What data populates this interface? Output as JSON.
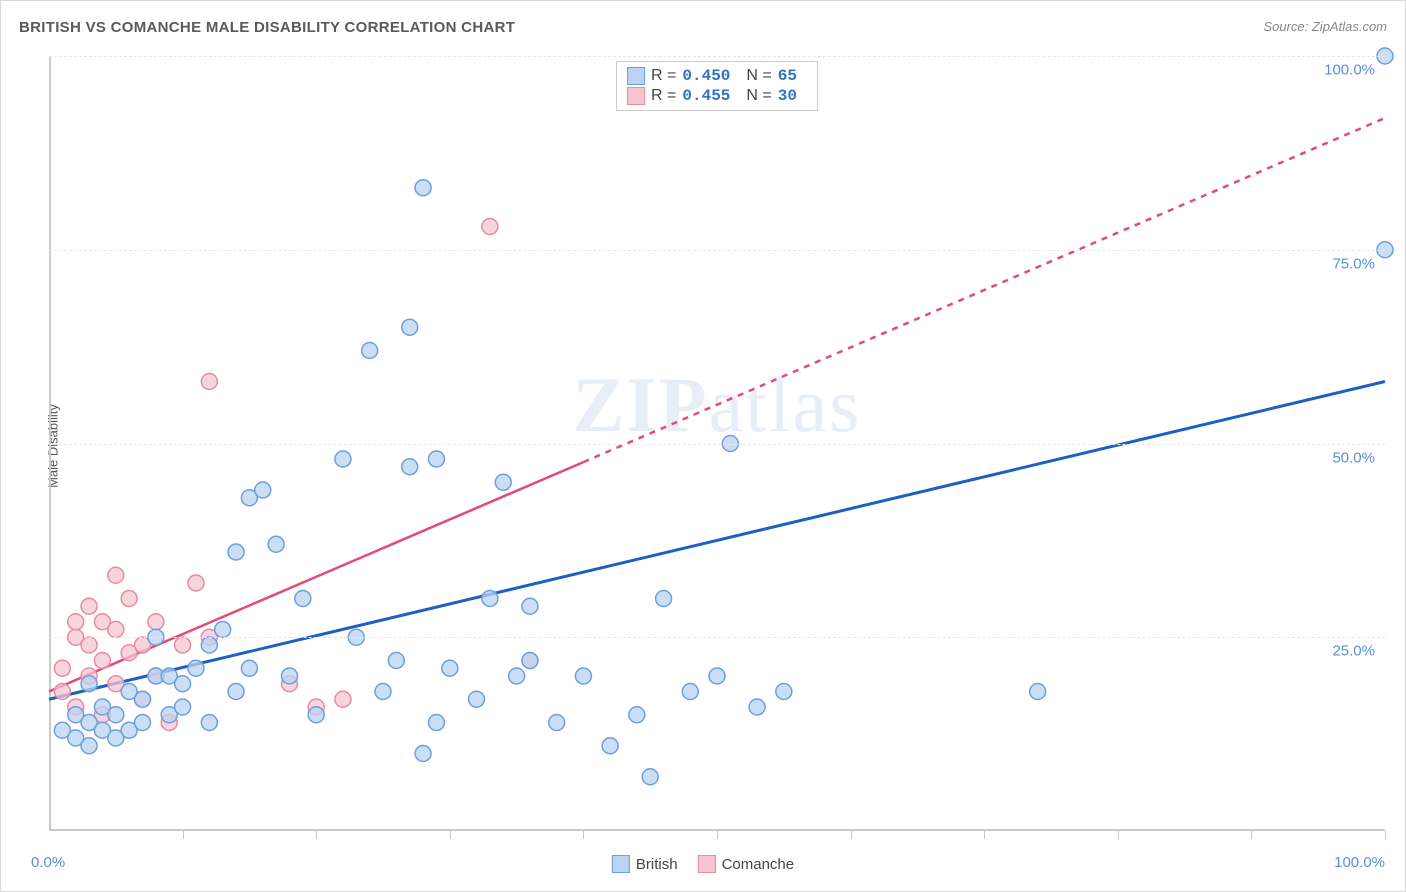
{
  "title": "BRITISH VS COMANCHE MALE DISABILITY CORRELATION CHART",
  "source": "Source: ZipAtlas.com",
  "y_axis_label": "Male Disability",
  "watermark_bold": "ZIP",
  "watermark_light": "atlas",
  "chart": {
    "type": "scatter",
    "background_color": "#ffffff",
    "grid_color": "#e8e8e8",
    "axis_color": "#c9c9c9",
    "marker_radius": 8,
    "marker_stroke_width": 1.5,
    "xlim": [
      0,
      100
    ],
    "ylim": [
      0,
      100
    ],
    "y_ticks": [
      {
        "v": 25,
        "label": "25.0%"
      },
      {
        "v": 50,
        "label": "50.0%"
      },
      {
        "v": 75,
        "label": "75.0%"
      },
      {
        "v": 100,
        "label": "100.0%"
      }
    ],
    "x_tick_positions": [
      0,
      10,
      20,
      30,
      40,
      50,
      60,
      70,
      80,
      90,
      100
    ],
    "x_min_label": "0.0%",
    "x_max_label": "100.0%"
  },
  "series": {
    "british": {
      "label": "British",
      "R": "0.450",
      "N": "65",
      "marker_fill": "#b9d3f0",
      "marker_stroke": "#6a9fe0",
      "marker_fill_opacity": 0.75,
      "regression_color": "#1f5fc4",
      "regression_width": 3,
      "regression_dash": "none",
      "regression_solid_end_x": 100,
      "regression": {
        "x1": 0,
        "y1": 17,
        "x2": 100,
        "y2": 58
      },
      "points": [
        [
          1,
          13
        ],
        [
          2,
          12
        ],
        [
          2,
          15
        ],
        [
          3,
          11
        ],
        [
          3,
          14
        ],
        [
          3,
          19
        ],
        [
          4,
          13
        ],
        [
          4,
          16
        ],
        [
          5,
          12
        ],
        [
          5,
          15
        ],
        [
          6,
          13
        ],
        [
          6,
          18
        ],
        [
          7,
          14
        ],
        [
          7,
          17
        ],
        [
          8,
          20
        ],
        [
          8,
          25
        ],
        [
          9,
          15
        ],
        [
          9,
          20
        ],
        [
          10,
          16
        ],
        [
          10,
          19
        ],
        [
          11,
          21
        ],
        [
          12,
          14
        ],
        [
          12,
          24
        ],
        [
          13,
          26
        ],
        [
          14,
          18
        ],
        [
          14,
          36
        ],
        [
          15,
          21
        ],
        [
          15,
          43
        ],
        [
          16,
          44
        ],
        [
          17,
          37
        ],
        [
          18,
          20
        ],
        [
          19,
          30
        ],
        [
          20,
          15
        ],
        [
          22,
          48
        ],
        [
          23,
          25
        ],
        [
          24,
          62
        ],
        [
          25,
          18
        ],
        [
          26,
          22
        ],
        [
          27,
          47
        ],
        [
          27,
          65
        ],
        [
          28,
          10
        ],
        [
          28,
          83
        ],
        [
          29,
          14
        ],
        [
          29,
          48
        ],
        [
          30,
          21
        ],
        [
          32,
          17
        ],
        [
          33,
          30
        ],
        [
          34,
          45
        ],
        [
          35,
          20
        ],
        [
          36,
          22
        ],
        [
          36,
          29
        ],
        [
          38,
          14
        ],
        [
          40,
          20
        ],
        [
          42,
          11
        ],
        [
          44,
          15
        ],
        [
          45,
          7
        ],
        [
          46,
          30
        ],
        [
          48,
          18
        ],
        [
          50,
          20
        ],
        [
          51,
          50
        ],
        [
          53,
          16
        ],
        [
          55,
          18
        ],
        [
          74,
          18
        ],
        [
          100,
          75
        ],
        [
          100,
          100
        ]
      ]
    },
    "comanche": {
      "label": "Comanche",
      "R": "0.455",
      "N": "30",
      "marker_fill": "#f5c5d2",
      "marker_stroke": "#e88aa3",
      "marker_fill_opacity": 0.75,
      "regression_color": "#e24a77",
      "regression_width": 2.5,
      "regression_dash": "6,6",
      "regression_solid_end_x": 40,
      "regression": {
        "x1": 0,
        "y1": 18,
        "x2": 100,
        "y2": 92
      },
      "points": [
        [
          1,
          18
        ],
        [
          1,
          21
        ],
        [
          2,
          16
        ],
        [
          2,
          25
        ],
        [
          2,
          27
        ],
        [
          3,
          20
        ],
        [
          3,
          24
        ],
        [
          3,
          29
        ],
        [
          4,
          15
        ],
        [
          4,
          22
        ],
        [
          4,
          27
        ],
        [
          5,
          19
        ],
        [
          5,
          26
        ],
        [
          5,
          33
        ],
        [
          6,
          23
        ],
        [
          6,
          30
        ],
        [
          7,
          17
        ],
        [
          7,
          24
        ],
        [
          8,
          20
        ],
        [
          8,
          27
        ],
        [
          9,
          14
        ],
        [
          10,
          24
        ],
        [
          11,
          32
        ],
        [
          12,
          25
        ],
        [
          12,
          58
        ],
        [
          18,
          19
        ],
        [
          20,
          16
        ],
        [
          22,
          17
        ],
        [
          33,
          78
        ],
        [
          36,
          22
        ]
      ]
    }
  },
  "legend_labels": {
    "R": "R =",
    "N": "N ="
  }
}
